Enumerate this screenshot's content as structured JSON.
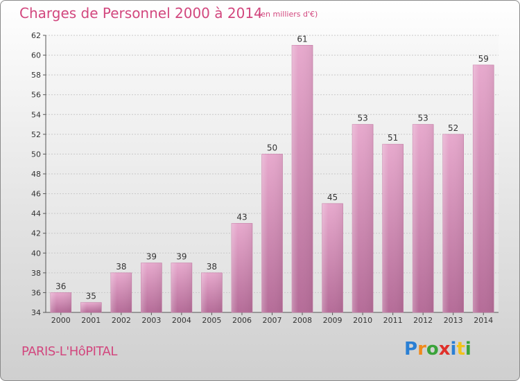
{
  "header": {
    "title": "Charges de Personnel 2000 à 2014",
    "subtitle": "(en milliers d'€)"
  },
  "footer": {
    "city": "PARIS-L'HôPITAL",
    "logo": [
      {
        "char": "P",
        "color": "#2a7fd4"
      },
      {
        "char": "r",
        "color": "#f08a1c"
      },
      {
        "char": "o",
        "color": "#3aa33a"
      },
      {
        "char": "x",
        "color": "#e0302a"
      },
      {
        "char": "i",
        "color": "#2a7fd4"
      },
      {
        "char": "t",
        "color": "#f2c21a"
      },
      {
        "char": "i",
        "color": "#3aa33a"
      }
    ]
  },
  "chart_data": {
    "type": "bar",
    "categories": [
      "2000",
      "2001",
      "2002",
      "2003",
      "2004",
      "2005",
      "2006",
      "2007",
      "2008",
      "2009",
      "2010",
      "2011",
      "2012",
      "2013",
      "2014"
    ],
    "values": [
      36,
      35,
      38,
      39,
      39,
      38,
      43,
      50,
      61,
      45,
      53,
      51,
      53,
      52,
      59
    ],
    "ylim": [
      34,
      62
    ],
    "yticks": [
      34,
      36,
      38,
      40,
      42,
      44,
      46,
      48,
      50,
      52,
      54,
      56,
      58,
      60,
      62
    ],
    "grid": true,
    "bar_color": "#d982b2"
  }
}
